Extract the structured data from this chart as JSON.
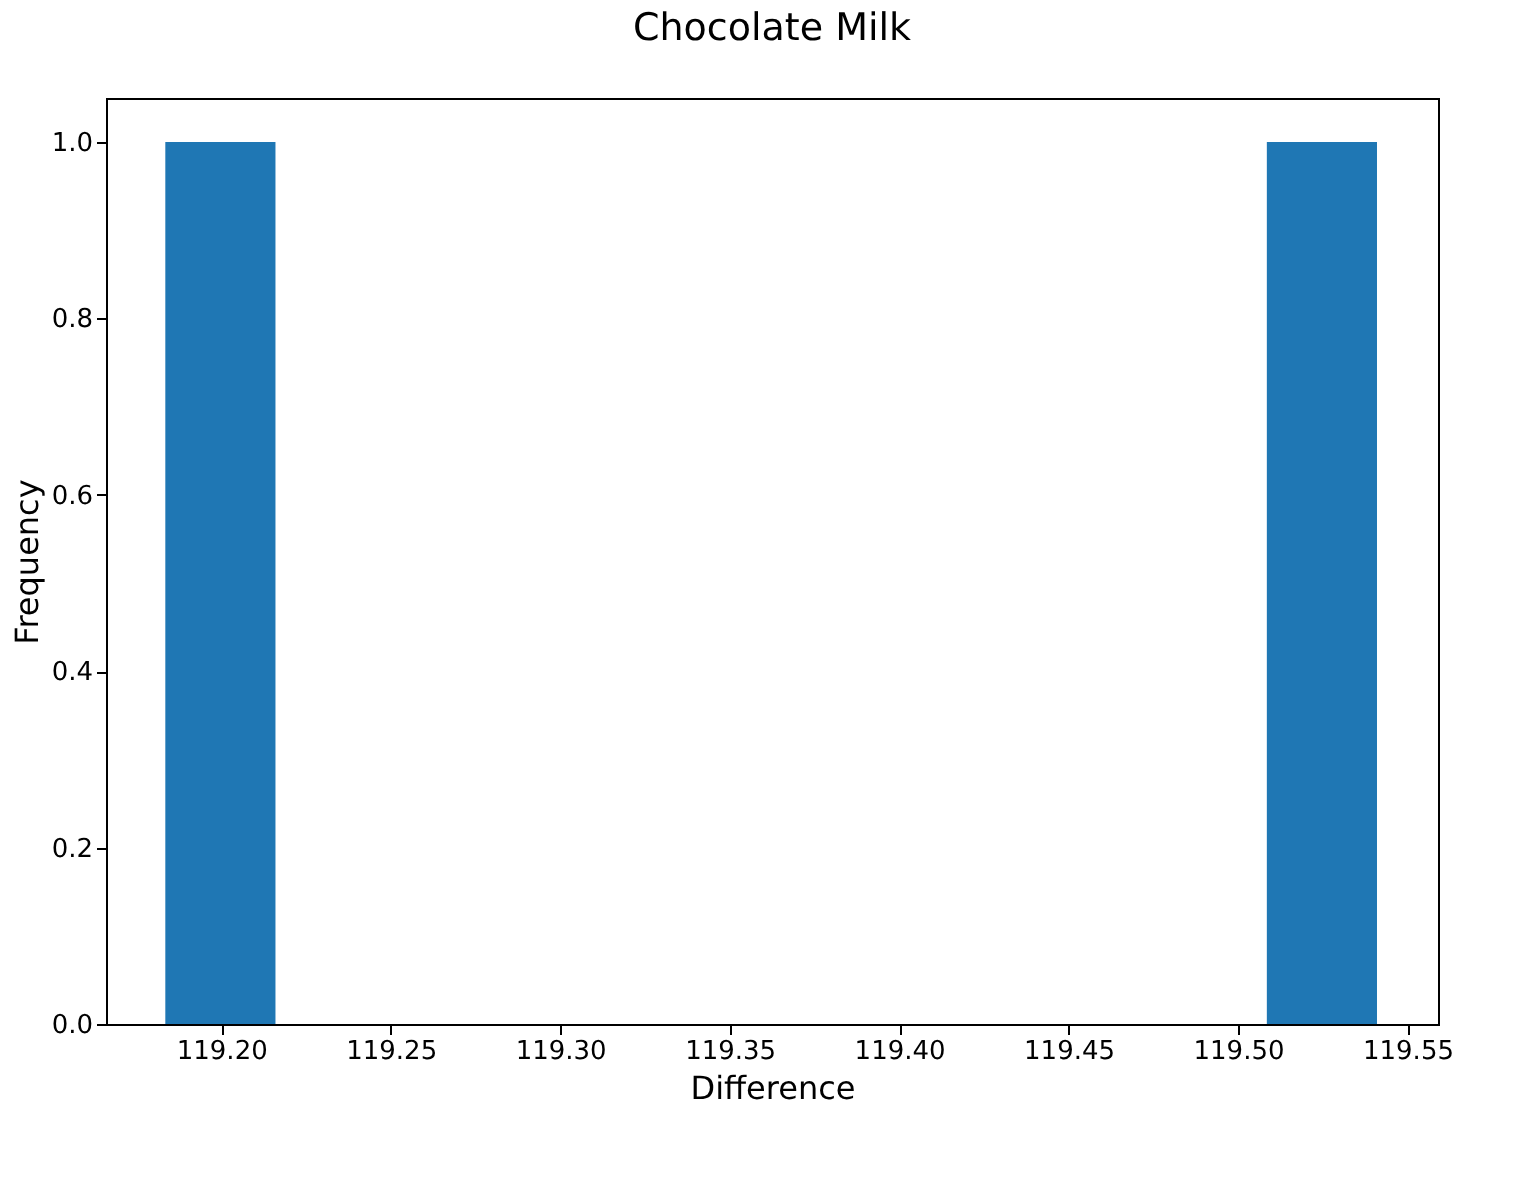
{
  "chart_data": {
    "type": "histogram",
    "title": "Chocolate Milk",
    "xlabel": "Difference",
    "ylabel": "Frequency",
    "bins": [
      119.1835,
      119.216,
      119.5085,
      119.541
    ],
    "values": [
      1,
      0,
      1
    ],
    "color": "#1f77b4",
    "xlim": [
      119.166,
      119.559
    ],
    "xticks": [
      {
        "value": 119.2,
        "label": "119.20"
      },
      {
        "value": 119.25,
        "label": "119.25"
      },
      {
        "value": 119.3,
        "label": "119.30"
      },
      {
        "value": 119.35,
        "label": "119.35"
      },
      {
        "value": 119.4,
        "label": "119.40"
      },
      {
        "value": 119.45,
        "label": "119.45"
      },
      {
        "value": 119.5,
        "label": "119.50"
      },
      {
        "value": 119.55,
        "label": "119.55"
      }
    ],
    "ylim": [
      0,
      1.05
    ],
    "yticks": [
      {
        "value": 0,
        "label": "0.0"
      },
      {
        "value": 0.2,
        "label": "0.2"
      },
      {
        "value": 0.4,
        "label": "0.4"
      },
      {
        "value": 0.6,
        "label": "0.6"
      },
      {
        "value": 0.8,
        "label": "0.8"
      },
      {
        "value": 1,
        "label": "1.0"
      }
    ],
    "grid": false
  }
}
